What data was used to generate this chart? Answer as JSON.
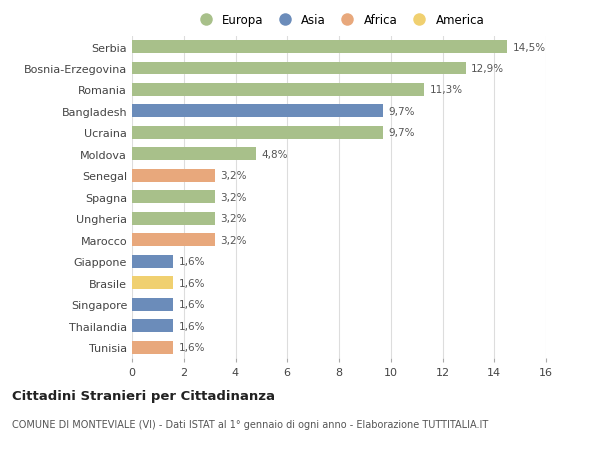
{
  "categories": [
    "Serbia",
    "Bosnia-Erzegovina",
    "Romania",
    "Bangladesh",
    "Ucraina",
    "Moldova",
    "Senegal",
    "Spagna",
    "Ungheria",
    "Marocco",
    "Giappone",
    "Brasile",
    "Singapore",
    "Thailandia",
    "Tunisia"
  ],
  "values": [
    14.5,
    12.9,
    11.3,
    9.7,
    9.7,
    4.8,
    3.2,
    3.2,
    3.2,
    3.2,
    1.6,
    1.6,
    1.6,
    1.6,
    1.6
  ],
  "labels": [
    "14,5%",
    "12,9%",
    "11,3%",
    "9,7%",
    "9,7%",
    "4,8%",
    "3,2%",
    "3,2%",
    "3,2%",
    "3,2%",
    "1,6%",
    "1,6%",
    "1,6%",
    "1,6%",
    "1,6%"
  ],
  "continents": [
    "Europa",
    "Europa",
    "Europa",
    "Asia",
    "Europa",
    "Europa",
    "Africa",
    "Europa",
    "Europa",
    "Africa",
    "Asia",
    "America",
    "Asia",
    "Asia",
    "Africa"
  ],
  "continent_colors": {
    "Europa": "#a8c08a",
    "Asia": "#6b8cba",
    "Africa": "#e8a87c",
    "America": "#f0d070"
  },
  "legend_order": [
    "Europa",
    "Asia",
    "Africa",
    "America"
  ],
  "title": "Cittadini Stranieri per Cittadinanza",
  "subtitle": "COMUNE DI MONTEVIALE (VI) - Dati ISTAT al 1° gennaio di ogni anno - Elaborazione TUTTITALIA.IT",
  "xlim": [
    0,
    16
  ],
  "xticks": [
    0,
    2,
    4,
    6,
    8,
    10,
    12,
    14,
    16
  ],
  "background_color": "#ffffff",
  "bar_height": 0.6,
  "grid_color": "#dddddd"
}
